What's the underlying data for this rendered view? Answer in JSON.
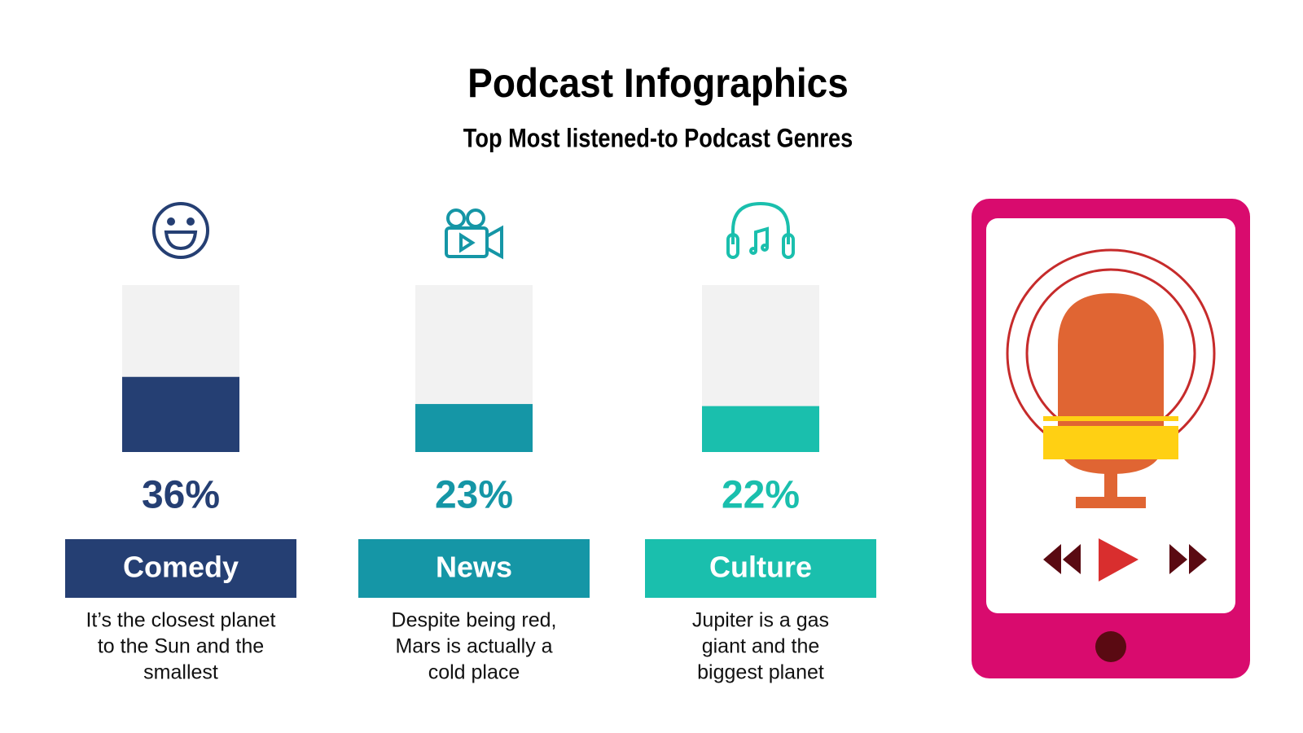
{
  "chart_data": {
    "type": "bar",
    "title": "Podcast Infographics",
    "subtitle": "Top Most listened-to Podcast Genres",
    "categories": [
      "Comedy",
      "News",
      "Culture"
    ],
    "values": [
      36,
      23,
      22
    ],
    "value_labels": [
      "36%",
      "23%",
      "22%"
    ],
    "colors": [
      "#253f73",
      "#1596a6",
      "#1abfad"
    ],
    "track_color": "#f2f2f2",
    "ylim": [
      0,
      80
    ],
    "descriptions": [
      [
        "It’s the closest planet",
        "to the Sun and the",
        "smallest"
      ],
      [
        "Despite being red,",
        "Mars is actually a",
        "cold place"
      ],
      [
        "Jupiter is a gas",
        "giant and the",
        "biggest planet"
      ]
    ]
  }
}
